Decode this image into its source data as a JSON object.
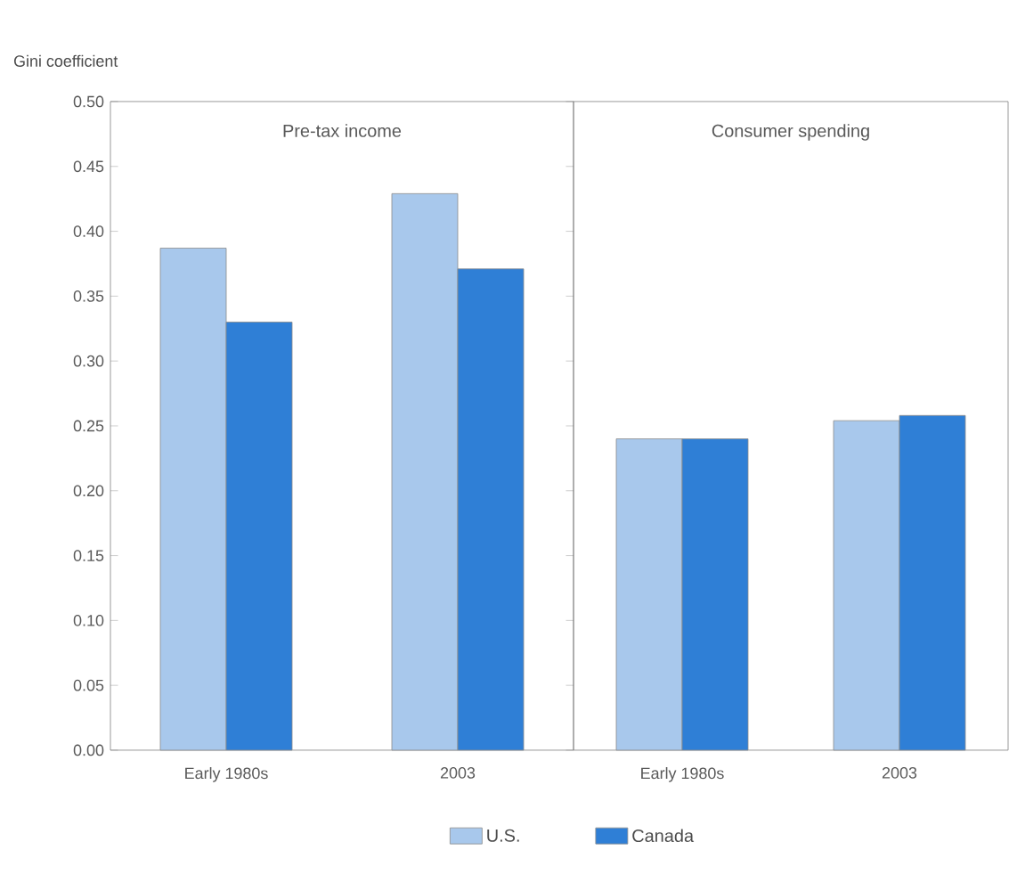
{
  "chart_data": [
    {
      "type": "bar",
      "ylabel": "Gini coefficient",
      "annotations": [
        "Pre-tax income"
      ],
      "categories": [
        "Early 1980s",
        "2003"
      ],
      "series": [
        {
          "name": "U.S.",
          "color": "#a8c8ec",
          "values": [
            0.387,
            0.429
          ]
        },
        {
          "name": "Canada",
          "color": "#2f7fd6",
          "values": [
            0.33,
            0.371
          ]
        }
      ],
      "ylim": [
        0,
        0.5
      ],
      "yticks": [
        {
          "value": 0,
          "label": "0.00"
        },
        {
          "value": 0.05,
          "label": "0.05"
        },
        {
          "value": 0.1,
          "label": "0.10"
        },
        {
          "value": 0.15,
          "label": "0.15"
        },
        {
          "value": 0.2,
          "label": "0.20"
        },
        {
          "value": 0.25,
          "label": "0.25"
        },
        {
          "value": 0.3,
          "label": "0.30"
        },
        {
          "value": 0.35,
          "label": "0.35"
        },
        {
          "value": 0.4,
          "label": "0.40"
        },
        {
          "value": 0.45,
          "label": "0.45"
        },
        {
          "value": 0.5,
          "label": "0.50"
        }
      ],
      "legend": "bottom"
    },
    {
      "type": "bar",
      "annotations": [
        "Consumer spending"
      ],
      "categories": [
        "Early 1980s",
        "2003"
      ],
      "series": [
        {
          "color": "#a8c8ec",
          "values": [
            0.24,
            0.254
          ]
        },
        {
          "color": "#2f7fd6",
          "values": [
            0.24,
            0.258
          ]
        }
      ],
      "ylim": [
        0,
        0.5
      ],
      "tick_labels": "x"
    }
  ]
}
